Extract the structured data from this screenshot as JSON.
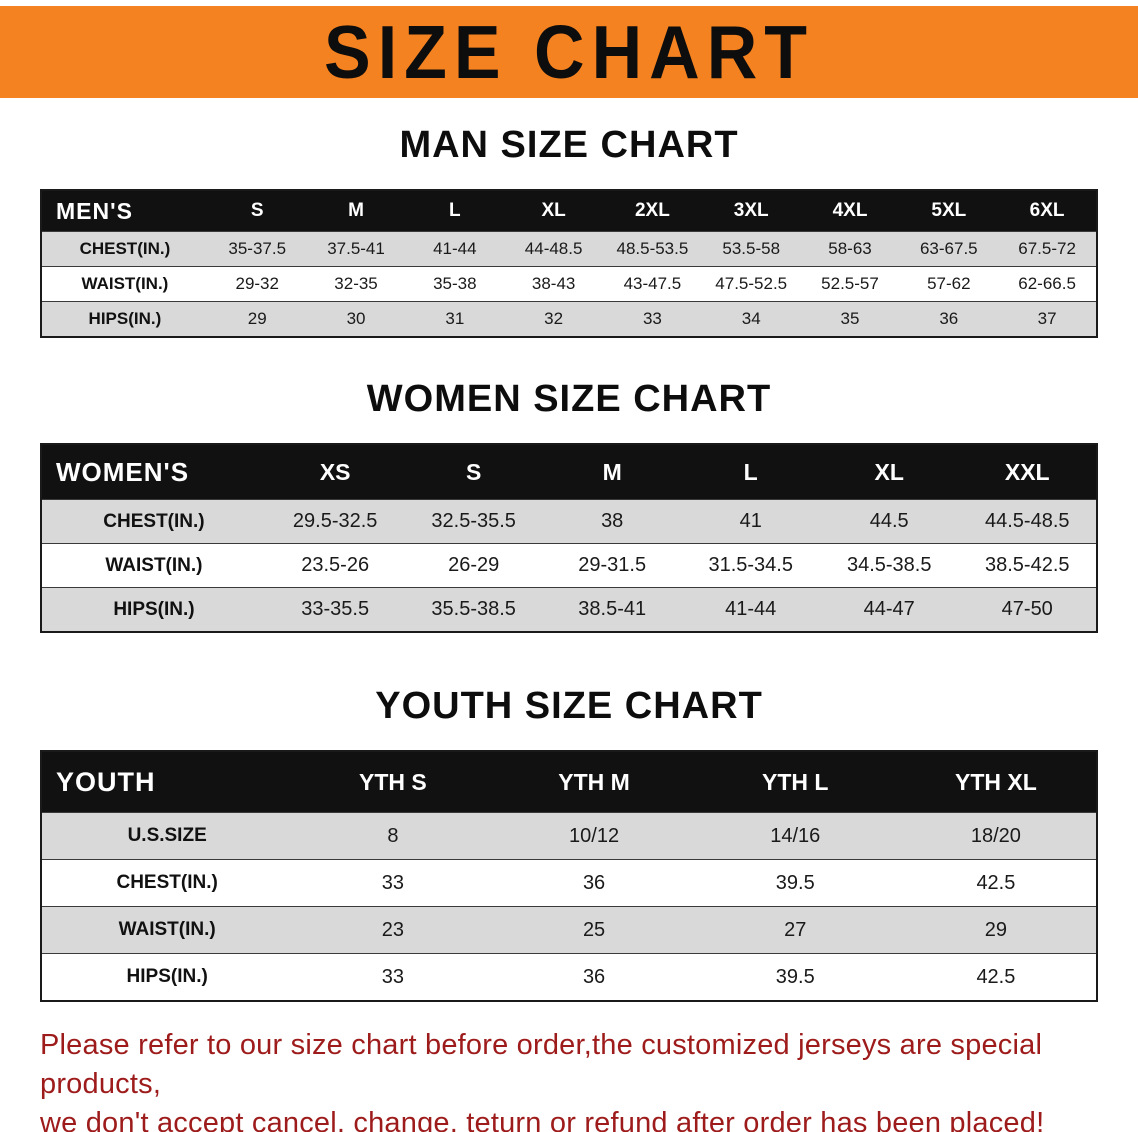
{
  "banner": {
    "title": "SIZE CHART"
  },
  "sections": [
    {
      "heading": "MAN SIZE CHART",
      "table": {
        "header": [
          "MEN'S",
          "S",
          "M",
          "L",
          "XL",
          "2XL",
          "3XL",
          "4XL",
          "5XL",
          "6XL"
        ],
        "rows": [
          [
            "CHEST(IN.)",
            "35-37.5",
            "37.5-41",
            "41-44",
            "44-48.5",
            "48.5-53.5",
            "53.5-58",
            "58-63",
            "63-67.5",
            "67.5-72"
          ],
          [
            "WAIST(IN.)",
            "29-32",
            "32-35",
            "35-38",
            "38-43",
            "43-47.5",
            "47.5-52.5",
            "52.5-57",
            "57-62",
            "62-66.5"
          ],
          [
            "HIPS(IN.)",
            "29",
            "30",
            "31",
            "32",
            "33",
            "34",
            "35",
            "36",
            "37"
          ]
        ]
      }
    },
    {
      "heading": "WOMEN SIZE CHART",
      "table": {
        "header": [
          "WOMEN'S",
          "XS",
          "S",
          "M",
          "L",
          "XL",
          "XXL"
        ],
        "rows": [
          [
            "CHEST(IN.)",
            "29.5-32.5",
            "32.5-35.5",
            "38",
            "41",
            "44.5",
            "44.5-48.5"
          ],
          [
            "WAIST(IN.)",
            "23.5-26",
            "26-29",
            "29-31.5",
            "31.5-34.5",
            "34.5-38.5",
            "38.5-42.5"
          ],
          [
            "HIPS(IN.)",
            "33-35.5",
            "35.5-38.5",
            "38.5-41",
            "41-44",
            "44-47",
            "47-50"
          ]
        ]
      }
    },
    {
      "heading": "YOUTH SIZE CHART",
      "table": {
        "header": [
          "YOUTH",
          "YTH S",
          "YTH M",
          "YTH L",
          "YTH XL"
        ],
        "rows": [
          [
            "U.S.SIZE",
            "8",
            "10/12",
            "14/16",
            "18/20"
          ],
          [
            "CHEST(IN.)",
            "33",
            "36",
            "39.5",
            "42.5"
          ],
          [
            "WAIST(IN.)",
            "23",
            "25",
            "27",
            "29"
          ],
          [
            "HIPS(IN.)",
            "33",
            "36",
            "39.5",
            "42.5"
          ]
        ]
      }
    }
  ],
  "footer": {
    "line1": "Please refer to our size chart before order,the customized jerseys are special products,",
    "line2": "we don't accept cancel, change, teturn or refund after order has been placed!"
  },
  "colors": {
    "banner_bg": "#F58220",
    "header_bg": "#111111",
    "stripe": "#D9D9D9",
    "footer_text": "#9E1B1B"
  }
}
